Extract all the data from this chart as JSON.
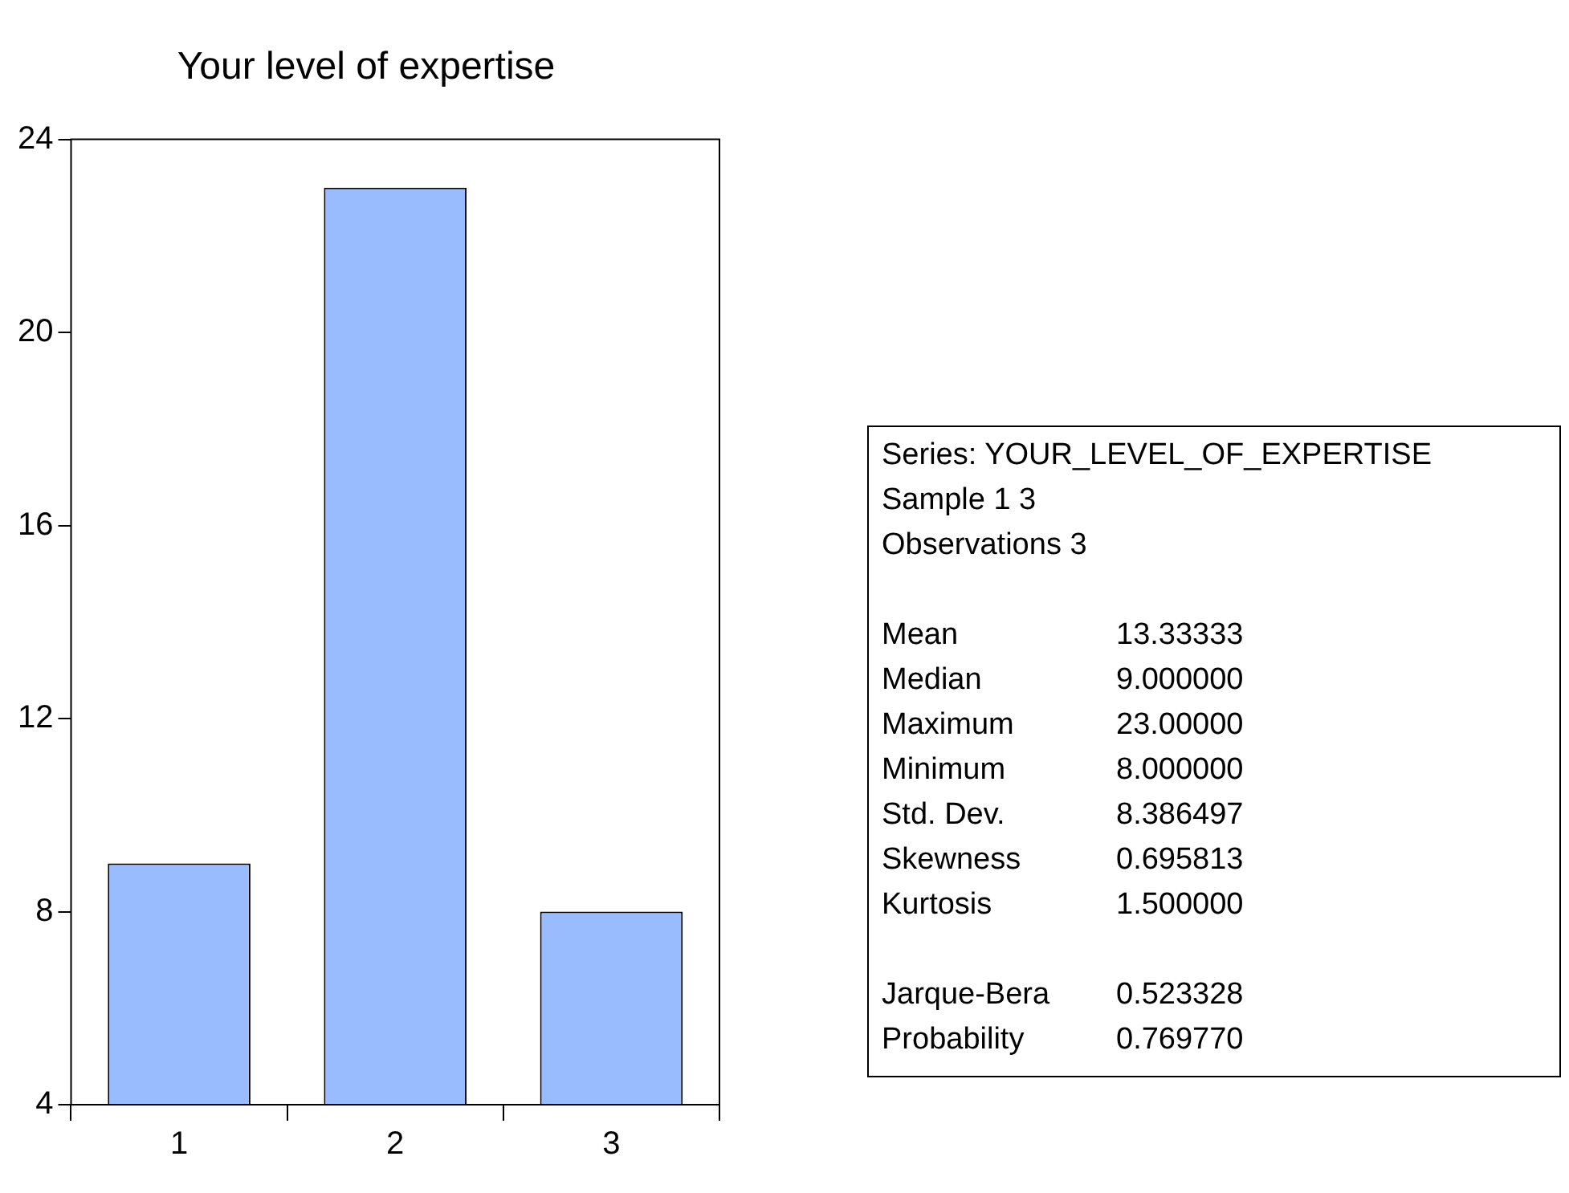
{
  "chart_data": [
    {
      "type": "bar",
      "title": "Your level of expertise",
      "categories": [
        "1",
        "2",
        "3"
      ],
      "values": [
        9,
        23,
        8
      ],
      "color": "#99bbff",
      "ylim": [
        4,
        24
      ],
      "yticks": [
        4,
        8,
        12,
        16,
        20,
        24
      ],
      "legend": false
    },
    {
      "type": "other",
      "annotations": [
        "Series: YOUR_LEVEL_OF_EXPERTISE",
        "Sample 1 3",
        "Observations 3",
        "Mean",
        "13.33333",
        "Median",
        "9.000000",
        "Maximum",
        "23.00000",
        "Minimum",
        "8.000000",
        "Std. Dev.",
        "8.386497",
        "Skewness",
        "0.695813",
        "Kurtosis",
        "1.500000",
        "Jarque-Bera",
        "0.523328",
        "Probability",
        "0.769770"
      ]
    }
  ]
}
